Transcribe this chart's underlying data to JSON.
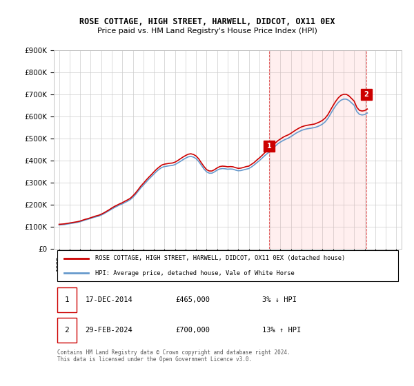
{
  "title": "ROSE COTTAGE, HIGH STREET, HARWELL, DIDCOT, OX11 0EX",
  "subtitle": "Price paid vs. HM Land Registry's House Price Index (HPI)",
  "legend_line1": "ROSE COTTAGE, HIGH STREET, HARWELL, DIDCOT, OX11 0EX (detached house)",
  "legend_line2": "HPI: Average price, detached house, Vale of White Horse",
  "note": "Contains HM Land Registry data © Crown copyright and database right 2024.\nThis data is licensed under the Open Government Licence v3.0.",
  "marker1_label": "1",
  "marker1_date": "17-DEC-2014",
  "marker1_price": "£465,000",
  "marker1_hpi": "3% ↓ HPI",
  "marker1_x": 2014.96,
  "marker1_y": 465000,
  "marker2_label": "2",
  "marker2_date": "29-FEB-2024",
  "marker2_price": "£700,000",
  "marker2_hpi": "13% ↑ HPI",
  "marker2_x": 2024.16,
  "marker2_y": 700000,
  "red_color": "#cc0000",
  "blue_color": "#6699cc",
  "grid_color": "#cccccc",
  "bg_color": "#ffffff",
  "hatch_color": "#ffcccc",
  "ylim": [
    0,
    900000
  ],
  "xlim": [
    1994.5,
    2027.5
  ],
  "hpi_data": {
    "years": [
      1995.0,
      1995.25,
      1995.5,
      1995.75,
      1996.0,
      1996.25,
      1996.5,
      1996.75,
      1997.0,
      1997.25,
      1997.5,
      1997.75,
      1998.0,
      1998.25,
      1998.5,
      1998.75,
      1999.0,
      1999.25,
      1999.5,
      1999.75,
      2000.0,
      2000.25,
      2000.5,
      2000.75,
      2001.0,
      2001.25,
      2001.5,
      2001.75,
      2002.0,
      2002.25,
      2002.5,
      2002.75,
      2003.0,
      2003.25,
      2003.5,
      2003.75,
      2004.0,
      2004.25,
      2004.5,
      2004.75,
      2005.0,
      2005.25,
      2005.5,
      2005.75,
      2006.0,
      2006.25,
      2006.5,
      2006.75,
      2007.0,
      2007.25,
      2007.5,
      2007.75,
      2008.0,
      2008.25,
      2008.5,
      2008.75,
      2009.0,
      2009.25,
      2009.5,
      2009.75,
      2010.0,
      2010.25,
      2010.5,
      2010.75,
      2011.0,
      2011.25,
      2011.5,
      2011.75,
      2012.0,
      2012.25,
      2012.5,
      2012.75,
      2013.0,
      2013.25,
      2013.5,
      2013.75,
      2014.0,
      2014.25,
      2014.5,
      2014.75,
      2015.0,
      2015.25,
      2015.5,
      2015.75,
      2016.0,
      2016.25,
      2016.5,
      2016.75,
      2017.0,
      2017.25,
      2017.5,
      2017.75,
      2018.0,
      2018.25,
      2018.5,
      2018.75,
      2019.0,
      2019.25,
      2019.5,
      2019.75,
      2020.0,
      2020.25,
      2020.5,
      2020.75,
      2021.0,
      2021.25,
      2021.5,
      2021.75,
      2022.0,
      2022.25,
      2022.5,
      2022.75,
      2023.0,
      2023.25,
      2023.5,
      2023.75,
      2024.0,
      2024.25
    ],
    "values": [
      107000,
      108000,
      109000,
      111000,
      113000,
      115000,
      117000,
      119000,
      122000,
      126000,
      130000,
      133000,
      137000,
      141000,
      144000,
      147000,
      152000,
      158000,
      165000,
      172000,
      179000,
      186000,
      192000,
      198000,
      203000,
      209000,
      215000,
      222000,
      232000,
      245000,
      260000,
      275000,
      288000,
      301000,
      314000,
      326000,
      338000,
      350000,
      360000,
      368000,
      372000,
      374000,
      376000,
      377000,
      381000,
      388000,
      395000,
      403000,
      410000,
      416000,
      418000,
      415000,
      408000,
      395000,
      378000,
      361000,
      348000,
      342000,
      342000,
      348000,
      356000,
      361000,
      363000,
      362000,
      360000,
      361000,
      360000,
      356000,
      353000,
      354000,
      357000,
      360000,
      363000,
      370000,
      379000,
      389000,
      399000,
      410000,
      421000,
      431000,
      440000,
      452000,
      464000,
      475000,
      483000,
      490000,
      496000,
      501000,
      508000,
      516000,
      524000,
      530000,
      536000,
      540000,
      543000,
      545000,
      547000,
      549000,
      553000,
      558000,
      565000,
      575000,
      590000,
      610000,
      630000,
      648000,
      663000,
      673000,
      678000,
      678000,
      672000,
      661000,
      650000,
      622000,
      609000,
      606000,
      608000,
      615000
    ]
  },
  "red_data": {
    "years": [
      1995.0,
      1995.25,
      1995.5,
      1995.75,
      1996.0,
      1996.25,
      1996.5,
      1996.75,
      1997.0,
      1997.25,
      1997.5,
      1997.75,
      1998.0,
      1998.25,
      1998.5,
      1998.75,
      1999.0,
      1999.25,
      1999.5,
      1999.75,
      2000.0,
      2000.25,
      2000.5,
      2000.75,
      2001.0,
      2001.25,
      2001.5,
      2001.75,
      2002.0,
      2002.25,
      2002.5,
      2002.75,
      2003.0,
      2003.25,
      2003.5,
      2003.75,
      2004.0,
      2004.25,
      2004.5,
      2004.75,
      2005.0,
      2005.25,
      2005.5,
      2005.75,
      2006.0,
      2006.25,
      2006.5,
      2006.75,
      2007.0,
      2007.25,
      2007.5,
      2007.75,
      2008.0,
      2008.25,
      2008.5,
      2008.75,
      2009.0,
      2009.25,
      2009.5,
      2009.75,
      2010.0,
      2010.25,
      2010.5,
      2010.75,
      2011.0,
      2011.25,
      2011.5,
      2011.75,
      2012.0,
      2012.25,
      2012.5,
      2012.75,
      2013.0,
      2013.25,
      2013.5,
      2013.75,
      2014.0,
      2014.25,
      2014.5,
      2014.75,
      2015.0,
      2015.25,
      2015.5,
      2015.75,
      2016.0,
      2016.25,
      2016.5,
      2016.75,
      2017.0,
      2017.25,
      2017.5,
      2017.75,
      2018.0,
      2018.25,
      2018.5,
      2018.75,
      2019.0,
      2019.25,
      2019.5,
      2019.75,
      2020.0,
      2020.25,
      2020.5,
      2020.75,
      2021.0,
      2021.25,
      2021.5,
      2021.75,
      2022.0,
      2022.25,
      2022.5,
      2022.75,
      2023.0,
      2023.25,
      2023.5,
      2023.75,
      2024.0,
      2024.25
    ],
    "values": [
      110000,
      111000,
      112000,
      114000,
      116000,
      118000,
      120000,
      122000,
      125000,
      129000,
      133000,
      136000,
      140000,
      144000,
      148000,
      151000,
      156000,
      162000,
      169000,
      176000,
      184000,
      191000,
      197000,
      203000,
      208000,
      215000,
      221000,
      228000,
      239000,
      252000,
      267000,
      283000,
      296000,
      310000,
      323000,
      335000,
      348000,
      360000,
      370000,
      379000,
      383000,
      385000,
      387000,
      388000,
      392000,
      399000,
      407000,
      415000,
      422000,
      428000,
      430000,
      427000,
      420000,
      407000,
      389000,
      372000,
      358000,
      352000,
      352000,
      358000,
      366000,
      372000,
      374000,
      373000,
      371000,
      372000,
      371000,
      367000,
      364000,
      365000,
      368000,
      372000,
      374000,
      382000,
      390000,
      401000,
      411000,
      422000,
      434000,
      444000,
      453000,
      465000,
      478000,
      489000,
      497000,
      505000,
      511000,
      516000,
      523000,
      531000,
      539000,
      546000,
      552000,
      556000,
      559000,
      561000,
      563000,
      565000,
      570000,
      575000,
      582000,
      592000,
      607000,
      628000,
      649000,
      668000,
      684000,
      695000,
      700000,
      700000,
      693000,
      681000,
      669000,
      641000,
      627000,
      624000,
      626000,
      633000
    ]
  },
  "hatch_region_x1": 2014.96,
  "hatch_region_x2": 2024.16
}
